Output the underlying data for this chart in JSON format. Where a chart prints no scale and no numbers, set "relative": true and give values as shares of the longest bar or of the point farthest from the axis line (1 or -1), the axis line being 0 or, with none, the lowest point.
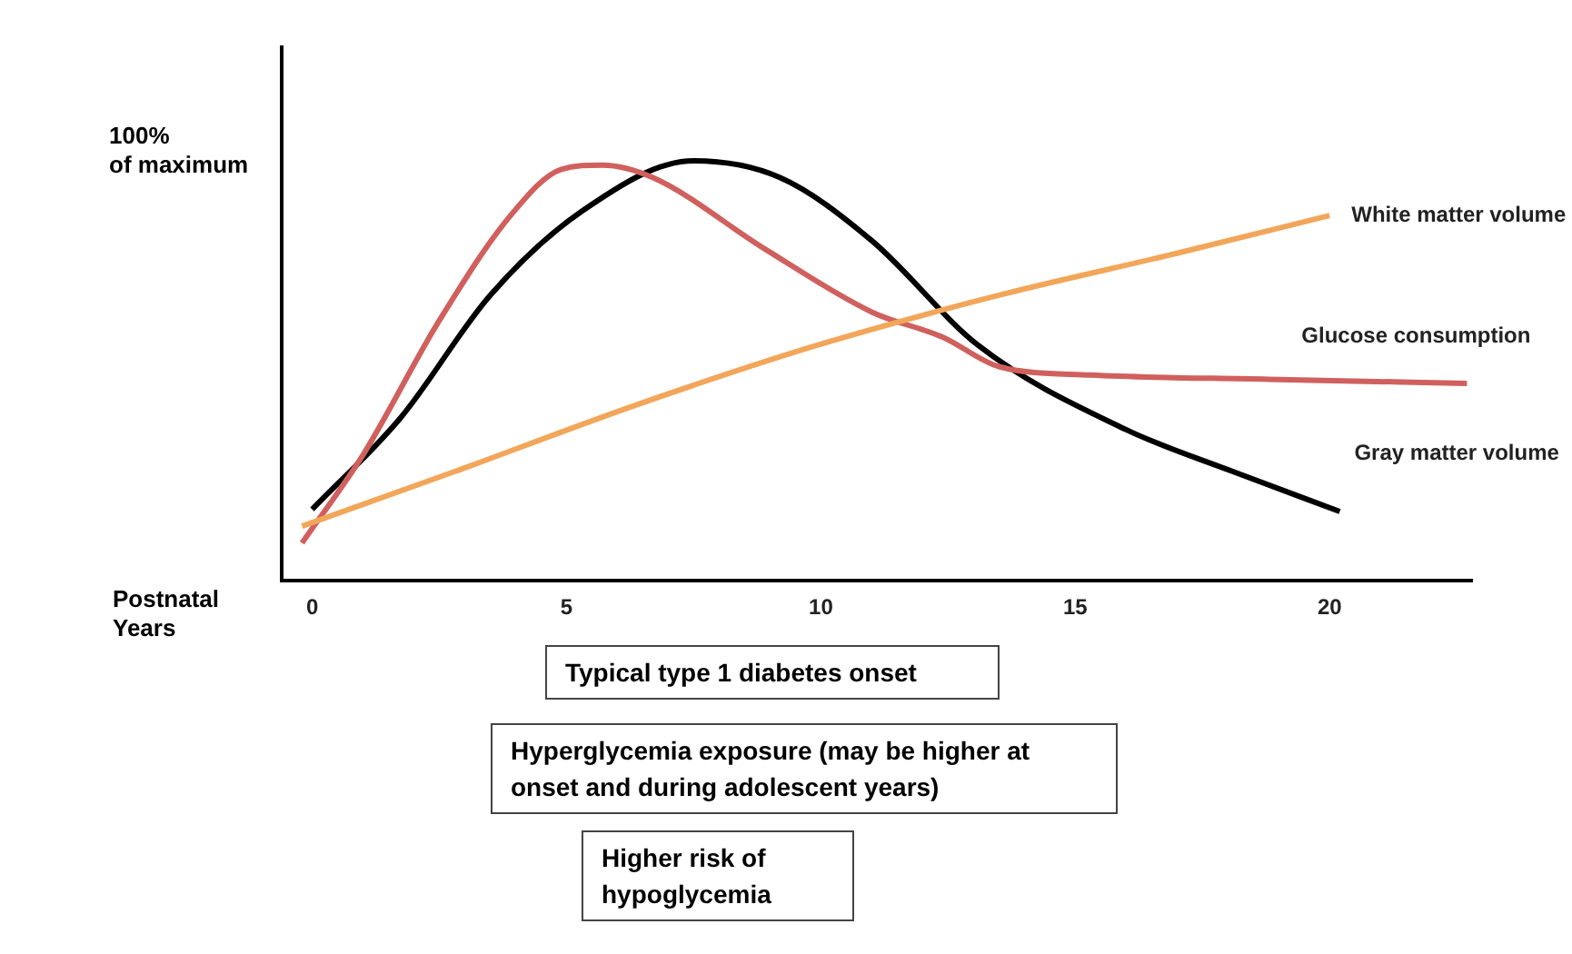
{
  "chart_data": {
    "type": "line",
    "relative": true,
    "xlabel": "Postnatal\nYears",
    "ylabel": "100%\nof maximum",
    "xlim": [
      -0.6,
      22.8
    ],
    "xticks": [
      0,
      5,
      10,
      15,
      20
    ],
    "grid": false,
    "legend": false,
    "marker": "none",
    "line_style": "solid",
    "series": [
      {
        "name": "White matter volume",
        "color": "#f2a65a",
        "x": [
          -0.2,
          2.8,
          6.4,
          9.9,
          13.5,
          17,
          20
        ],
        "values": [
          0.13,
          0.26,
          0.42,
          0.56,
          0.68,
          0.78,
          0.87
        ]
      },
      {
        "name": "Glucose consumption",
        "color": "#d0605e",
        "x": [
          -0.2,
          1,
          2.5,
          3.9,
          4.9,
          5.7,
          6.7,
          8.9,
          11,
          12.4,
          13.5,
          15.3,
          18.8,
          22.7
        ],
        "values": [
          0.09,
          0.3,
          0.62,
          0.87,
          0.98,
          0.99,
          0.96,
          0.79,
          0.64,
          0.58,
          0.51,
          0.49,
          0.48,
          0.47
        ]
      },
      {
        "name": "Gray matter volume",
        "color": "#000000",
        "x": [
          0,
          1.75,
          3.5,
          5.3,
          7.5,
          9.2,
          11,
          13.1,
          16,
          18.1,
          20.2
        ],
        "values": [
          0.17,
          0.39,
          0.68,
          0.88,
          1.0,
          0.96,
          0.81,
          0.56,
          0.36,
          0.26,
          0.165
        ]
      }
    ],
    "annotations": [
      "Typical type 1 diabetes onset",
      "Hyperglycemia exposure (may be higher at onset and during adolescent years)",
      "Higher risk of hypoglycemia"
    ]
  }
}
